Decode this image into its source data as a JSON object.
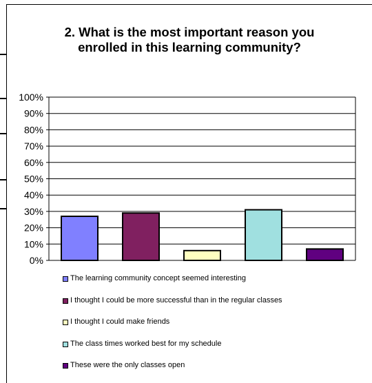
{
  "chart_data": {
    "type": "bar",
    "title": "2. What is the most important reason you enrolled in this learning community?",
    "xlabel": "",
    "ylabel": "",
    "ylim": [
      0,
      100
    ],
    "yticks": [
      "0%",
      "10%",
      "20%",
      "30%",
      "40%",
      "50%",
      "60%",
      "70%",
      "80%",
      "90%",
      "100%"
    ],
    "grid": true,
    "legend_position": "bottom",
    "categories": [
      "The learning community concept seemed interesting",
      "I thought I could be more successful than in the regular classes",
      "I thought I could make friends",
      "The class times worked best for my schedule",
      "These were the only classes open"
    ],
    "values": [
      27,
      29,
      6,
      31,
      7
    ],
    "colors": [
      "#8080ff",
      "#802060",
      "#ffffc0",
      "#a0e0e0",
      "#600080"
    ]
  }
}
